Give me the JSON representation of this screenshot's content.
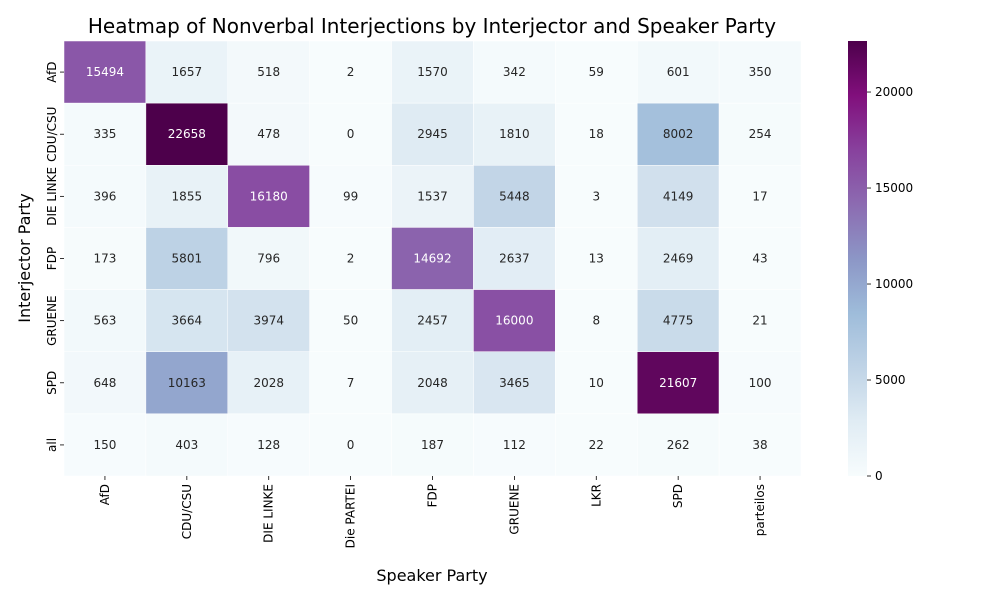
{
  "chart_data": {
    "type": "heatmap",
    "title": "Heatmap of Nonverbal Interjections by Interjector and Speaker Party",
    "xlabel": "Speaker Party",
    "ylabel": "Interjector Party",
    "x_categories": [
      "AfD",
      "CDU/CSU",
      "DIE LINKE",
      "Die PARTEI",
      "FDP",
      "GRUENE",
      "LKR",
      "SPD",
      "parteilos"
    ],
    "y_categories": [
      "AfD",
      "CDU/CSU",
      "DIE LINKE",
      "FDP",
      "GRUENE",
      "SPD",
      "all"
    ],
    "values": [
      [
        15494,
        1657,
        518,
        2,
        1570,
        342,
        59,
        601,
        350
      ],
      [
        335,
        22658,
        478,
        0,
        2945,
        1810,
        18,
        8002,
        254
      ],
      [
        396,
        1855,
        16180,
        99,
        1537,
        5448,
        3,
        4149,
        17
      ],
      [
        173,
        5801,
        796,
        2,
        14692,
        2637,
        13,
        2469,
        43
      ],
      [
        563,
        3664,
        3974,
        50,
        2457,
        16000,
        8,
        4775,
        21
      ],
      [
        648,
        10163,
        2028,
        7,
        2048,
        3465,
        10,
        21607,
        100
      ],
      [
        150,
        403,
        128,
        0,
        187,
        112,
        22,
        262,
        38
      ]
    ],
    "colorscale": "BuPu",
    "colorbar": {
      "min": 0,
      "max": 22658,
      "ticks": [
        0,
        5000,
        10000,
        15000,
        20000
      ]
    }
  }
}
